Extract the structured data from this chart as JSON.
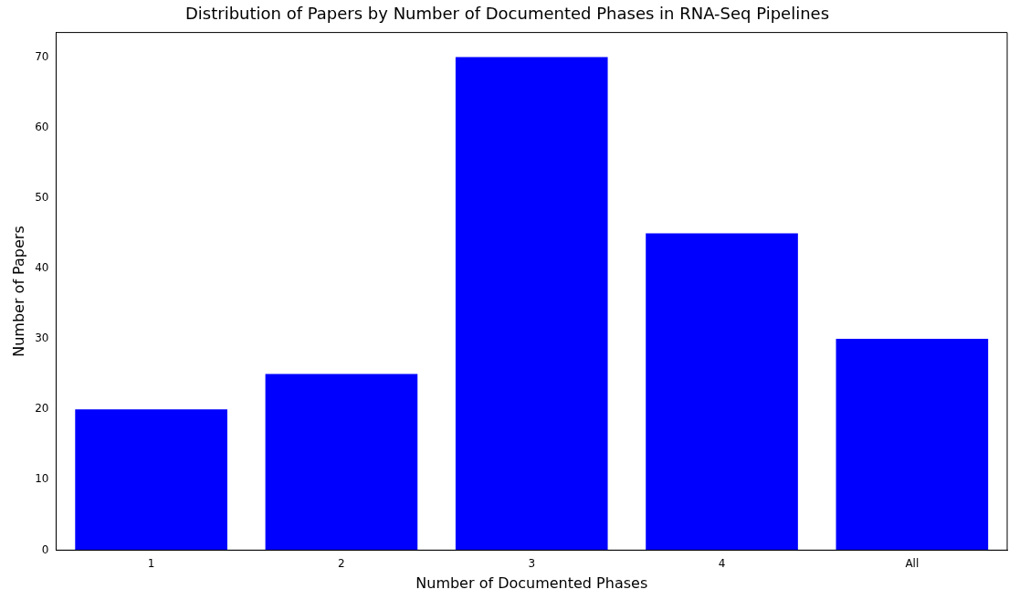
{
  "chart_data": {
    "type": "bar",
    "title": "Distribution of Papers by Number of Documented Phases in RNA-Seq Pipelines",
    "xlabel": "Number of Documented Phases",
    "ylabel": "Number of Papers",
    "categories": [
      "1",
      "2",
      "3",
      "4",
      "All"
    ],
    "values": [
      20,
      25,
      70,
      45,
      30
    ],
    "color": "#0000ff",
    "ylim": [
      0,
      73.5
    ],
    "yticks": [
      0,
      10,
      20,
      30,
      40,
      50,
      60,
      70
    ],
    "grid": false,
    "legend": false
  }
}
